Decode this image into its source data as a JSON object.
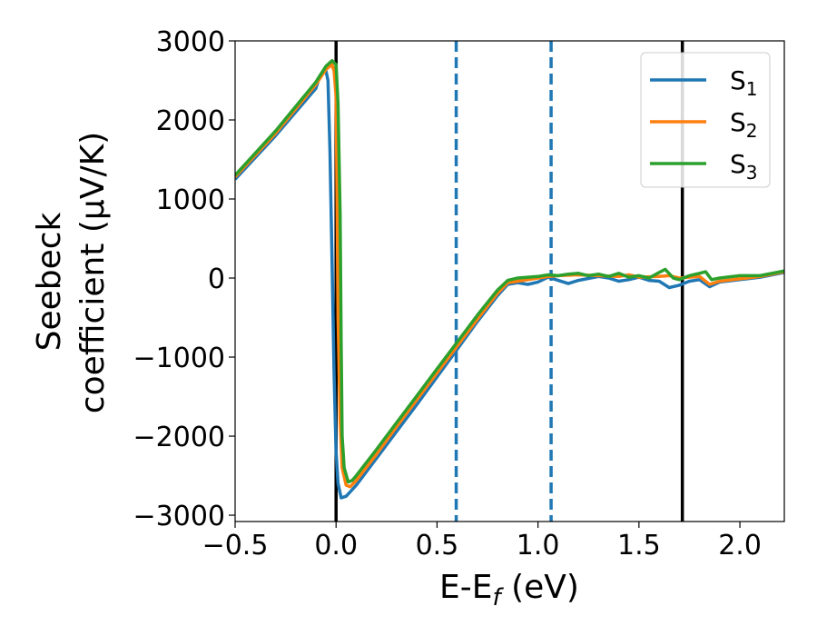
{
  "chart_data": {
    "type": "line",
    "title": "",
    "xlabel": "E-E_f (eV)",
    "ylabel_line1": "Seebeck",
    "ylabel_line2": "coefficient  (μV/K)",
    "xlim": [
      -0.5,
      2.22
    ],
    "ylim": [
      -3080,
      3000
    ],
    "x_ticks": [
      -0.5,
      0.0,
      0.5,
      1.0,
      1.5,
      2.0
    ],
    "x_tick_labels": [
      "−0.5",
      "0.0",
      "0.5",
      "1.0",
      "1.5",
      "2.0"
    ],
    "y_ticks": [
      -3000,
      -2000,
      -1000,
      0,
      1000,
      2000,
      3000
    ],
    "y_tick_labels": [
      "−3000",
      "−2000",
      "−1000",
      "0",
      "1000",
      "2000",
      "3000"
    ],
    "grid": false,
    "legend_position": "top-right",
    "vertical_lines": [
      {
        "x": 0.0,
        "style": "solid",
        "color": "#000000"
      },
      {
        "x": 0.595,
        "style": "dashed",
        "color": "#1f77b4"
      },
      {
        "x": 1.065,
        "style": "dashed",
        "color": "#1f77b4"
      },
      {
        "x": 1.715,
        "style": "solid",
        "color": "#000000"
      }
    ],
    "series": [
      {
        "name": "S1",
        "label_base": "S",
        "label_sub": "1",
        "color": "#1f77b4",
        "points": [
          [
            -0.5,
            1250
          ],
          [
            -0.3,
            1800
          ],
          [
            -0.1,
            2400
          ],
          [
            -0.08,
            2560
          ],
          [
            -0.05,
            2620
          ],
          [
            -0.04,
            2500
          ],
          [
            -0.03,
            1600
          ],
          [
            -0.02,
            200
          ],
          [
            -0.01,
            -1200
          ],
          [
            0.0,
            -2200
          ],
          [
            0.01,
            -2600
          ],
          [
            0.025,
            -2780
          ],
          [
            0.05,
            -2760
          ],
          [
            0.1,
            -2620
          ],
          [
            0.2,
            -2280
          ],
          [
            0.3,
            -1940
          ],
          [
            0.4,
            -1600
          ],
          [
            0.5,
            -1250
          ],
          [
            0.6,
            -900
          ],
          [
            0.7,
            -550
          ],
          [
            0.8,
            -220
          ],
          [
            0.85,
            -80
          ],
          [
            0.9,
            -60
          ],
          [
            0.95,
            -80
          ],
          [
            1.0,
            -50
          ],
          [
            1.05,
            10
          ],
          [
            1.1,
            -30
          ],
          [
            1.15,
            -70
          ],
          [
            1.2,
            -30
          ],
          [
            1.3,
            20
          ],
          [
            1.35,
            0
          ],
          [
            1.4,
            -40
          ],
          [
            1.45,
            -20
          ],
          [
            1.5,
            10
          ],
          [
            1.55,
            -30
          ],
          [
            1.6,
            -40
          ],
          [
            1.65,
            -120
          ],
          [
            1.7,
            -90
          ],
          [
            1.75,
            -40
          ],
          [
            1.8,
            -20
          ],
          [
            1.85,
            -110
          ],
          [
            1.9,
            -50
          ],
          [
            2.0,
            -20
          ],
          [
            2.1,
            10
          ],
          [
            2.22,
            70
          ]
        ]
      },
      {
        "name": "S2",
        "label_base": "S",
        "label_sub": "2",
        "color": "#ff7f0e",
        "points": [
          [
            -0.5,
            1280
          ],
          [
            -0.3,
            1830
          ],
          [
            -0.1,
            2450
          ],
          [
            -0.05,
            2640
          ],
          [
            -0.02,
            2700
          ],
          [
            -0.01,
            2620
          ],
          [
            0.0,
            2300
          ],
          [
            0.005,
            1000
          ],
          [
            0.01,
            -500
          ],
          [
            0.02,
            -1800
          ],
          [
            0.03,
            -2400
          ],
          [
            0.05,
            -2620
          ],
          [
            0.07,
            -2640
          ],
          [
            0.1,
            -2560
          ],
          [
            0.2,
            -2230
          ],
          [
            0.3,
            -1880
          ],
          [
            0.4,
            -1540
          ],
          [
            0.5,
            -1200
          ],
          [
            0.6,
            -860
          ],
          [
            0.7,
            -520
          ],
          [
            0.8,
            -190
          ],
          [
            0.85,
            -60
          ],
          [
            0.9,
            -40
          ],
          [
            0.95,
            -20
          ],
          [
            1.0,
            0
          ],
          [
            1.05,
            20
          ],
          [
            1.1,
            30
          ],
          [
            1.2,
            40
          ],
          [
            1.3,
            30
          ],
          [
            1.4,
            20
          ],
          [
            1.45,
            40
          ],
          [
            1.5,
            10
          ],
          [
            1.6,
            20
          ],
          [
            1.65,
            30
          ],
          [
            1.7,
            0
          ],
          [
            1.8,
            20
          ],
          [
            1.85,
            -80
          ],
          [
            1.9,
            -40
          ],
          [
            2.0,
            -10
          ],
          [
            2.1,
            20
          ],
          [
            2.22,
            80
          ]
        ]
      },
      {
        "name": "S3",
        "label_base": "S",
        "label_sub": "3",
        "color": "#2ca02c",
        "points": [
          [
            -0.5,
            1300
          ],
          [
            -0.3,
            1860
          ],
          [
            -0.1,
            2480
          ],
          [
            -0.05,
            2680
          ],
          [
            -0.02,
            2750
          ],
          [
            0.0,
            2700
          ],
          [
            0.01,
            2200
          ],
          [
            0.02,
            800
          ],
          [
            0.025,
            -800
          ],
          [
            0.03,
            -2000
          ],
          [
            0.04,
            -2400
          ],
          [
            0.06,
            -2580
          ],
          [
            0.08,
            -2560
          ],
          [
            0.1,
            -2500
          ],
          [
            0.2,
            -2170
          ],
          [
            0.3,
            -1830
          ],
          [
            0.4,
            -1490
          ],
          [
            0.5,
            -1150
          ],
          [
            0.6,
            -810
          ],
          [
            0.7,
            -470
          ],
          [
            0.8,
            -150
          ],
          [
            0.85,
            -30
          ],
          [
            0.9,
            0
          ],
          [
            0.95,
            10
          ],
          [
            1.0,
            20
          ],
          [
            1.05,
            40
          ],
          [
            1.1,
            30
          ],
          [
            1.15,
            50
          ],
          [
            1.2,
            60
          ],
          [
            1.25,
            30
          ],
          [
            1.3,
            50
          ],
          [
            1.35,
            20
          ],
          [
            1.4,
            60
          ],
          [
            1.45,
            10
          ],
          [
            1.5,
            30
          ],
          [
            1.55,
            0
          ],
          [
            1.6,
            70
          ],
          [
            1.63,
            110
          ],
          [
            1.67,
            0
          ],
          [
            1.7,
            -20
          ],
          [
            1.75,
            30
          ],
          [
            1.8,
            60
          ],
          [
            1.83,
            80
          ],
          [
            1.86,
            -20
          ],
          [
            1.9,
            0
          ],
          [
            2.0,
            30
          ],
          [
            2.1,
            30
          ],
          [
            2.22,
            90
          ]
        ]
      }
    ]
  }
}
